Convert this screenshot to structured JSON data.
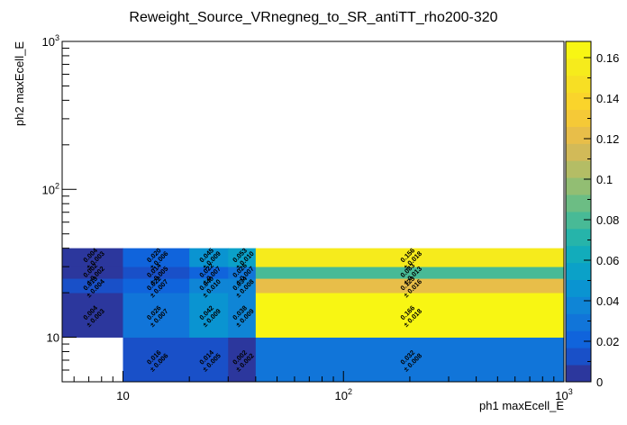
{
  "chart_data": {
    "type": "heatmap",
    "title": "Reweight_Source_VRnegneg_to_SR_antiTT_rho200-320",
    "xlabel": "ph1 maxEcell_E",
    "ylabel": "ph2 maxEcell_E",
    "x_scale": "log",
    "y_scale": "log",
    "xlim": [
      5.3,
      1000
    ],
    "ylim": [
      5,
      1000
    ],
    "x_tick_labels": [
      {
        "value": 10,
        "mant": "10",
        "exp": ""
      },
      {
        "value": 100,
        "mant": "10",
        "exp": "2"
      },
      {
        "value": 1000,
        "mant": "10",
        "exp": "3"
      }
    ],
    "y_tick_labels": [
      {
        "value": 10,
        "mant": "10",
        "exp": ""
      },
      {
        "value": 100,
        "mant": "10",
        "exp": "2"
      },
      {
        "value": 1000,
        "mant": "10",
        "exp": "3"
      }
    ],
    "x_edges": [
      5.3,
      10,
      20,
      30,
      40,
      1000
    ],
    "y_edges": [
      5,
      10,
      20,
      25,
      30,
      40,
      1000
    ],
    "z_range": [
      0,
      0.168
    ],
    "colorbar_ticks": [
      "0",
      "0.02",
      "0.04",
      "0.06",
      "0.08",
      "0.1",
      "0.12",
      "0.14",
      "0.16"
    ],
    "colorbar_tick_values": [
      0,
      0.02,
      0.04,
      0.06,
      0.08,
      0.1,
      0.12,
      0.14,
      0.16
    ],
    "cells": [
      {
        "ix": 1,
        "iy": 0,
        "value": 0.016,
        "label": "0.016",
        "err": "± 0.006"
      },
      {
        "ix": 2,
        "iy": 0,
        "value": 0.014,
        "label": "0.014",
        "err": "± 0.005"
      },
      {
        "ix": 3,
        "iy": 0,
        "value": 0.002,
        "label": "0.002",
        "err": "± 0.002"
      },
      {
        "ix": 4,
        "iy": 0,
        "value": 0.032,
        "label": "0.032",
        "err": "± 0.008"
      },
      {
        "ix": 0,
        "iy": 1,
        "value": 0.004,
        "label": "0.004",
        "err": "± 0.003"
      },
      {
        "ix": 1,
        "iy": 1,
        "value": 0.026,
        "label": "0.026",
        "err": "± 0.007"
      },
      {
        "ix": 2,
        "iy": 1,
        "value": 0.042,
        "label": "0.042",
        "err": "± 0.009"
      },
      {
        "ix": 3,
        "iy": 1,
        "value": 0.038,
        "label": "0.038",
        "err": "± 0.009"
      },
      {
        "ix": 4,
        "iy": 1,
        "value": 0.166,
        "label": "0.166",
        "err": "± 0.018"
      },
      {
        "ix": 0,
        "iy": 2,
        "value": 0.013,
        "label": "0.013",
        "err": "± 0.004"
      },
      {
        "ix": 1,
        "iy": 2,
        "value": 0.022,
        "label": "0.022",
        "err": "± 0.007"
      },
      {
        "ix": 2,
        "iy": 2,
        "value": 0.04,
        "label": "0.040",
        "err": "± 0.010"
      },
      {
        "ix": 3,
        "iy": 2,
        "value": 0.034,
        "label": "0.034",
        "err": "± 0.008"
      },
      {
        "ix": 4,
        "iy": 2,
        "value": 0.123,
        "label": "0.123",
        "err": "± 0.016"
      },
      {
        "ix": 0,
        "iy": 3,
        "value": 0.002,
        "label": "0.002",
        "err": "± 0.002"
      },
      {
        "ix": 1,
        "iy": 3,
        "value": 0.014,
        "label": "0.014",
        "err": "± 0.005"
      },
      {
        "ix": 2,
        "iy": 3,
        "value": 0.022,
        "label": "0.022",
        "err": "± 0.007"
      },
      {
        "ix": 3,
        "iy": 3,
        "value": 0.026,
        "label": "0.026",
        "err": "± 0.007"
      },
      {
        "ix": 4,
        "iy": 3,
        "value": 0.083,
        "label": "0.083",
        "err": "± 0.013"
      },
      {
        "ix": 0,
        "iy": 4,
        "value": 0.004,
        "label": "0.004",
        "err": "± 0.003"
      },
      {
        "ix": 1,
        "iy": 4,
        "value": 0.02,
        "label": "0.020",
        "err": "± 0.006"
      },
      {
        "ix": 2,
        "iy": 4,
        "value": 0.045,
        "label": "0.045",
        "err": "± 0.009"
      },
      {
        "ix": 3,
        "iy": 4,
        "value": 0.053,
        "label": "0.053",
        "err": "± 0.010"
      },
      {
        "ix": 4,
        "iy": 4,
        "value": 0.156,
        "label": "0.156",
        "err": "± 0.018"
      }
    ]
  }
}
